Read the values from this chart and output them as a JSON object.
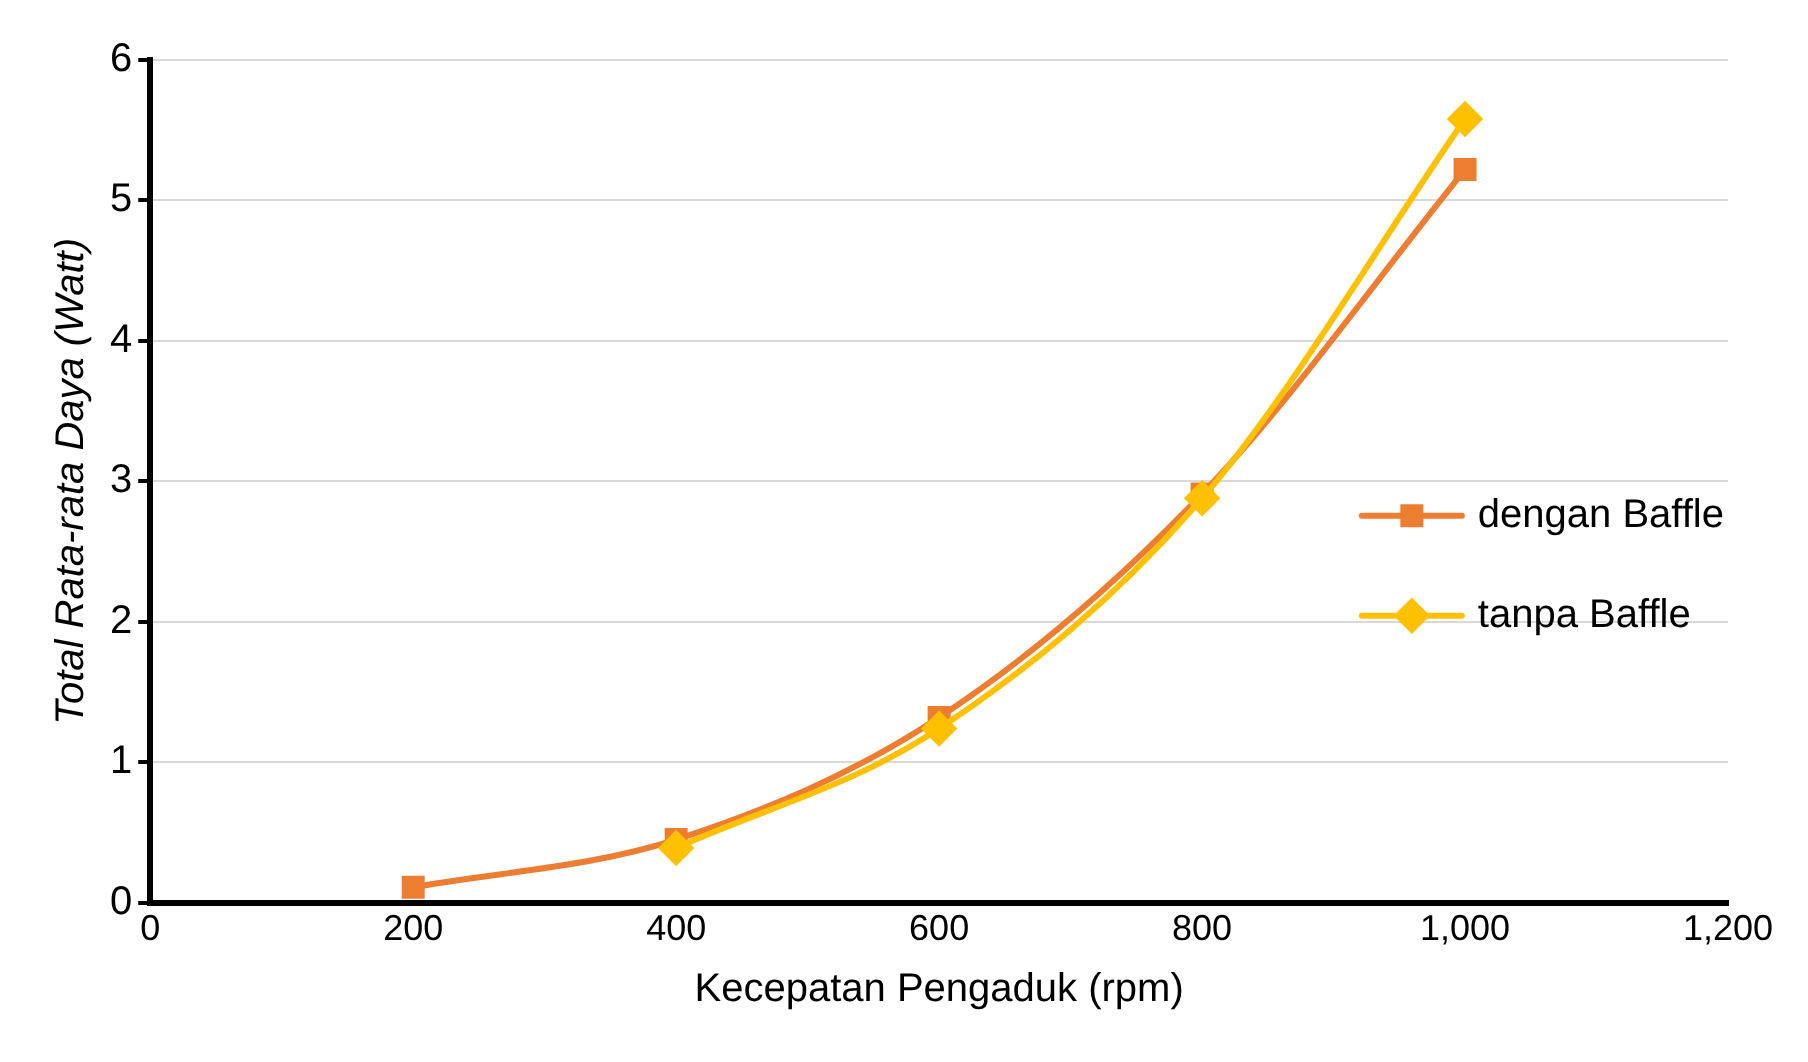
{
  "chart_data": {
    "type": "line",
    "xlabel": "Kecepatan Pengaduk (rpm)",
    "ylabel": "Total Rata-rata Daya (Watt)",
    "x": [
      200,
      400,
      600,
      800,
      1000
    ],
    "series": [
      {
        "name": "dengan Baffle",
        "color": "#ed7d31",
        "marker": "square",
        "values": [
          0.11,
          0.45,
          1.32,
          2.91,
          5.22
        ]
      },
      {
        "name": "tanpa Baffle",
        "color": "#ffc000",
        "marker": "diamond",
        "values": [
          null,
          0.39,
          1.24,
          2.88,
          5.58
        ]
      }
    ],
    "xlim": [
      0,
      1200
    ],
    "xticks": [
      {
        "value": 0,
        "label": "0"
      },
      {
        "value": 200,
        "label": "200"
      },
      {
        "value": 400,
        "label": "400"
      },
      {
        "value": 600,
        "label": "600"
      },
      {
        "value": 800,
        "label": "800"
      },
      {
        "value": 1000,
        "label": "1,000"
      },
      {
        "value": 1200,
        "label": "1,200"
      }
    ],
    "ylim": [
      0,
      6
    ],
    "yticks": [
      0,
      1,
      2,
      3,
      4,
      5,
      6
    ],
    "grid": "y",
    "legend": "right",
    "line_style": "solid"
  }
}
